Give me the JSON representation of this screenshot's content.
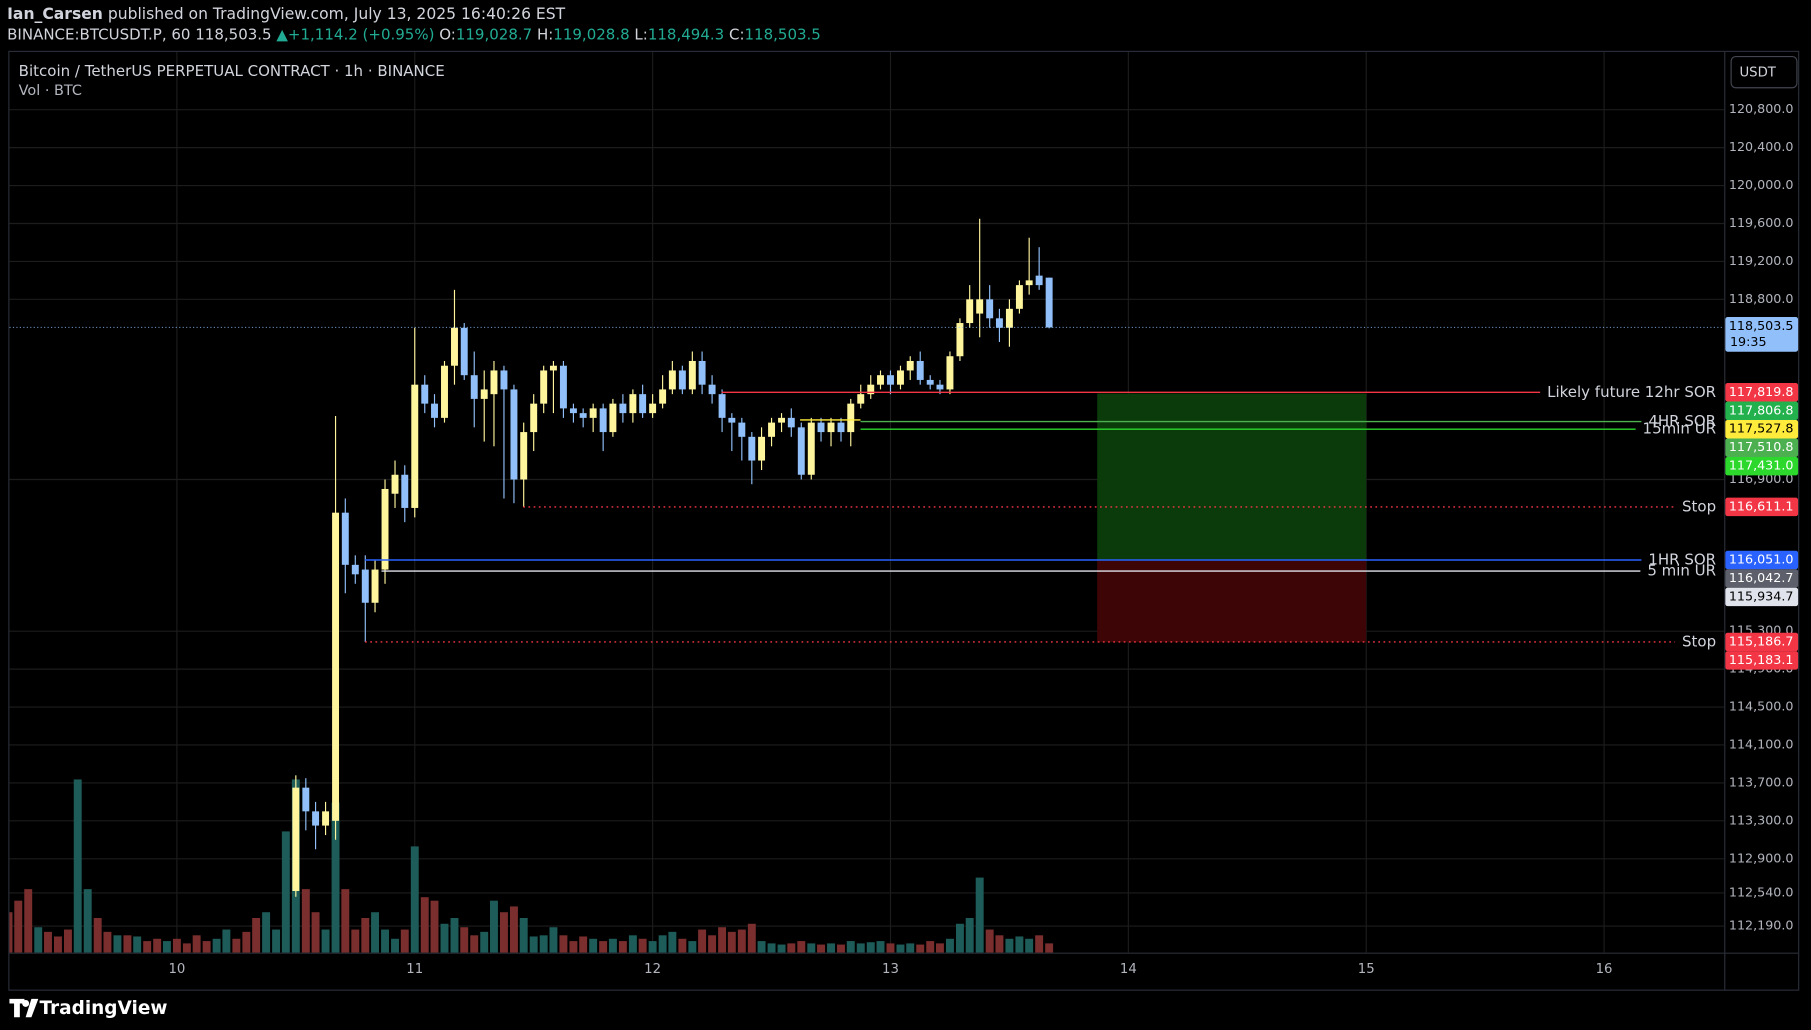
{
  "header": {
    "author": "Ian_Carsen",
    "published": "published on TradingView.com, July 13, 2025 16:40:26 EST",
    "symbol": "BINANCE:BTCUSDT.P, 60",
    "price": "118,503.5",
    "arrow": "▲",
    "change": "+1,114.2 (+0.95%)",
    "o_key": "O:",
    "o": "119,028.7",
    "h_key": "H:",
    "h": "119,028.8",
    "l_key": "L:",
    "l": "118,494.3",
    "c_key": "C:",
    "c": "118,503.5"
  },
  "footer": {
    "logo": "TradingView"
  },
  "chart_data": {
    "type": "candlestick",
    "title": "Bitcoin / TetherUS PERPETUAL CONTRACT · 1h · BINANCE",
    "subtitle": "Vol · BTC",
    "currency": "USDT",
    "x": [
      9.292,
      9.333,
      9.375,
      9.417,
      9.458,
      9.5,
      9.542,
      9.583,
      9.625,
      9.667,
      9.708,
      9.75,
      9.792,
      9.833,
      9.875,
      9.917,
      9.958,
      10,
      10.042,
      10.083,
      10.125,
      10.167,
      10.208,
      10.25,
      10.292,
      10.333,
      10.375,
      10.417,
      10.458,
      10.5,
      10.542,
      10.583,
      10.625,
      10.667,
      10.708,
      10.75,
      10.792,
      10.833,
      10.875,
      10.917,
      10.958,
      11,
      11.042,
      11.083,
      11.125,
      11.167,
      11.208,
      11.25,
      11.292,
      11.333,
      11.375,
      11.417,
      11.458,
      11.5,
      11.542,
      11.583,
      11.625,
      11.667,
      11.708,
      11.75,
      11.792,
      11.833,
      11.875,
      11.917,
      11.958,
      12,
      12.042,
      12.083,
      12.125,
      12.167,
      12.208,
      12.25,
      12.292,
      12.333,
      12.375,
      12.417,
      12.458,
      12.5,
      12.542,
      12.583,
      12.625,
      12.667,
      12.708,
      12.75,
      12.792,
      12.833,
      12.875,
      12.917,
      12.958,
      13,
      13.042,
      13.083,
      13.125,
      13.167,
      13.208,
      13.25,
      13.292,
      13.333,
      13.375,
      13.417,
      13.458,
      13.5,
      13.542,
      13.583,
      13.625,
      13.667
    ],
    "open": [
      null,
      null,
      null,
      null,
      null,
      null,
      null,
      null,
      null,
      null,
      null,
      null,
      null,
      null,
      null,
      null,
      null,
      null,
      null,
      null,
      null,
      null,
      null,
      null,
      null,
      null,
      null,
      null,
      null,
      112560,
      113650,
      113400,
      113250,
      113300,
      116550,
      116000,
      115950,
      115600,
      115950,
      116750,
      116950,
      116600,
      117900,
      117700,
      117550,
      118100,
      118500,
      118000,
      117750,
      117800,
      118050,
      117850,
      116900,
      117400,
      117700,
      118050,
      118100,
      117650,
      117600,
      117550,
      117650,
      117400,
      117700,
      117600,
      117800,
      117600,
      117700,
      117850,
      118050,
      117850,
      118150,
      117900,
      117800,
      117550,
      117500,
      117350,
      117100,
      117350,
      117500,
      117550,
      117450,
      116950,
      117500,
      117400,
      117500,
      117400,
      117700,
      117800,
      117900,
      118000,
      117900,
      118050,
      118150,
      117950,
      117900,
      117850,
      118200,
      118550,
      118650,
      118800,
      118600,
      118500,
      118700,
      118950,
      119050,
      119028.7
    ],
    "high": [
      null,
      null,
      null,
      null,
      null,
      null,
      null,
      null,
      null,
      null,
      null,
      null,
      null,
      null,
      null,
      null,
      null,
      null,
      null,
      null,
      null,
      null,
      null,
      null,
      null,
      null,
      null,
      null,
      null,
      113780,
      113750,
      113500,
      113500,
      117570,
      116700,
      116100,
      116100,
      116050,
      116900,
      117100,
      117050,
      118500,
      118000,
      117800,
      118150,
      118900,
      118550,
      118250,
      118050,
      118150,
      118100,
      117900,
      117500,
      117800,
      118100,
      118150,
      118150,
      117700,
      117650,
      117700,
      117700,
      117750,
      117800,
      117850,
      117900,
      117800,
      118000,
      118150,
      118100,
      118250,
      118250,
      118000,
      117850,
      117600,
      117550,
      117400,
      117450,
      117550,
      117600,
      117650,
      117500,
      117550,
      117550,
      117550,
      117550,
      117750,
      117900,
      118000,
      118050,
      118050,
      118100,
      118200,
      118250,
      118000,
      117950,
      118250,
      118600,
      118950,
      119650,
      118950,
      118700,
      118800,
      119000,
      119450,
      119350,
      119028.8
    ],
    "low": [
      null,
      null,
      null,
      null,
      null,
      null,
      null,
      null,
      null,
      null,
      null,
      null,
      null,
      null,
      null,
      null,
      null,
      null,
      null,
      null,
      null,
      null,
      null,
      null,
      null,
      null,
      null,
      null,
      null,
      112500,
      113200,
      113000,
      113150,
      113100,
      115700,
      115800,
      115186,
      115500,
      115800,
      116600,
      116450,
      116500,
      117600,
      117450,
      117500,
      117900,
      117950,
      117450,
      117300,
      117250,
      116700,
      116650,
      116611,
      117200,
      117600,
      117600,
      117550,
      117500,
      117450,
      117400,
      117200,
      117350,
      117500,
      117500,
      117550,
      117550,
      117650,
      117800,
      117800,
      117800,
      117800,
      117700,
      117400,
      117200,
      117100,
      116850,
      117000,
      117250,
      117400,
      117350,
      116900,
      116900,
      117300,
      117250,
      117300,
      117250,
      117650,
      117750,
      117850,
      117800,
      117850,
      117950,
      117900,
      117850,
      117800,
      117800,
      118150,
      118500,
      118400,
      118500,
      118350,
      118300,
      118650,
      118850,
      118900,
      118494.3
    ],
    "close": [
      null,
      null,
      null,
      null,
      null,
      null,
      null,
      null,
      null,
      null,
      null,
      null,
      null,
      null,
      null,
      null,
      null,
      null,
      null,
      null,
      null,
      null,
      null,
      null,
      null,
      null,
      null,
      null,
      null,
      113650,
      113400,
      113250,
      113400,
      116550,
      116000,
      115900,
      115600,
      115950,
      116800,
      116950,
      116600,
      117900,
      117700,
      117550,
      118100,
      118500,
      118000,
      117750,
      117850,
      118050,
      117850,
      116900,
      117400,
      117700,
      118050,
      118100,
      117650,
      117600,
      117550,
      117650,
      117400,
      117700,
      117600,
      117800,
      117600,
      117700,
      117850,
      118050,
      117850,
      118150,
      117900,
      117800,
      117550,
      117500,
      117350,
      117100,
      117350,
      117500,
      117550,
      117450,
      116950,
      117500,
      117400,
      117500,
      117400,
      117700,
      117800,
      117900,
      118000,
      117900,
      118050,
      118150,
      117950,
      117900,
      117850,
      118200,
      118550,
      118800,
      118800,
      118600,
      118500,
      118700,
      118950,
      119000,
      118950,
      118503.5
    ],
    "volume": {
      "values": [
        35,
        45,
        55,
        22,
        18,
        14,
        20,
        150,
        55,
        30,
        18,
        15,
        15,
        14,
        10,
        12,
        10,
        12,
        8,
        15,
        10,
        12,
        20,
        12,
        18,
        30,
        35,
        20,
        105,
        150,
        55,
        35,
        20,
        130,
        55,
        20,
        30,
        35,
        20,
        12,
        20,
        92,
        48,
        45,
        25,
        30,
        22,
        15,
        18,
        45,
        35,
        40,
        30,
        14,
        15,
        22,
        15,
        10,
        14,
        12,
        10,
        12,
        10,
        15,
        12,
        10,
        15,
        18,
        12,
        10,
        20,
        15,
        22,
        18,
        20,
        25,
        10,
        8,
        7,
        8,
        10,
        8,
        7,
        8,
        7,
        10,
        8,
        9,
        10,
        8,
        7,
        8,
        7,
        10,
        8,
        12,
        25,
        30,
        65,
        20,
        15,
        12,
        14,
        12,
        15,
        8
      ],
      "rising": [
        false,
        false,
        false,
        true,
        false,
        false,
        false,
        true,
        true,
        false,
        false,
        true,
        false,
        true,
        false,
        false,
        true,
        false,
        false,
        false,
        false,
        true,
        true,
        false,
        false,
        false,
        true,
        true,
        true,
        true,
        false,
        false,
        true,
        true,
        false,
        false,
        false,
        true,
        true,
        true,
        false,
        true,
        false,
        false,
        true,
        true,
        false,
        false,
        true,
        true,
        false,
        false,
        true,
        true,
        true,
        true,
        false,
        false,
        false,
        true,
        false,
        true,
        false,
        true,
        false,
        true,
        true,
        true,
        false,
        true,
        false,
        false,
        false,
        false,
        false,
        false,
        true,
        true,
        true,
        false,
        false,
        true,
        false,
        true,
        false,
        true,
        true,
        true,
        true,
        false,
        true,
        true,
        false,
        false,
        false,
        true,
        true,
        true,
        true,
        false,
        false,
        true,
        true,
        true,
        false,
        false
      ]
    },
    "colors": {
      "up": "#fff59d",
      "down": "#90bff9",
      "volume_up": "#1e5c59",
      "volume_down": "#7a2e2e"
    },
    "xlim": [
      9.296,
      16.505
    ],
    "xticks": [
      10,
      11,
      12,
      13,
      14,
      15,
      16
    ],
    "ylim": [
      111910,
      121409
    ],
    "yticks": [
      {
        "value": 120800,
        "label": "120,800.0"
      },
      {
        "value": 120400,
        "label": "120,400.0"
      },
      {
        "value": 120000,
        "label": "120,000.0"
      },
      {
        "value": 119600,
        "label": "119,600.0"
      },
      {
        "value": 119200,
        "label": "119,200.0"
      },
      {
        "value": 118800,
        "label": "118,800.0"
      },
      {
        "value": 116900,
        "label": "116,900.0"
      },
      {
        "value": 115300,
        "label": "115,300.0"
      },
      {
        "value": 114900,
        "label": "114,900.0"
      },
      {
        "value": 114500,
        "label": "114,500.0"
      },
      {
        "value": 114100,
        "label": "114,100.0"
      },
      {
        "value": 113700,
        "label": "113,700.0"
      },
      {
        "value": 113300,
        "label": "113,300.0"
      },
      {
        "value": 112900,
        "label": "112,900.0"
      },
      {
        "value": 112540,
        "label": "112,540.0"
      },
      {
        "value": 112190,
        "label": "112,190.0"
      }
    ],
    "grid": true,
    "last": {
      "value": 118503.5,
      "label": "118,503.5",
      "countdown": "19:35",
      "color": "#90bff9"
    },
    "levels": [
      {
        "label": "Likely future 12hr SOR",
        "value": 117819.8,
        "value_label": "117,819.8",
        "color": "#f23645",
        "style": "solid",
        "from": 12.29
      },
      {
        "label": "4HR SOR",
        "value": 117510.8,
        "value_label": "117,510.8",
        "color": "#4caf50",
        "style": "solid",
        "from": 12.874
      },
      {
        "label": "15min UR",
        "value": 117431.0,
        "value_label": "117,431.0",
        "color": "#2bd82b",
        "style": "solid",
        "from": 12.874
      },
      {
        "value": 117527.8,
        "value_label": "117,527.8",
        "color": "#ffeb3b",
        "style": "solid",
        "from": 12.62,
        "to": 12.874
      },
      {
        "label": "Stop",
        "value": 116611.1,
        "value_label": "116,611.1",
        "color": "#f23645",
        "style": "dotted",
        "from": 11.456
      },
      {
        "label": "1HR SOR",
        "value": 116051.0,
        "value_label": "116,051.0",
        "color": "#2962ff",
        "style": "solid",
        "from": 10.791
      },
      {
        "label": "5 min UR",
        "value": 115934.7,
        "value_label": "115,934.7",
        "color": "#e0e3eb",
        "style": "solid",
        "from": 10.86
      },
      {
        "label": "Stop",
        "value": 115186.7,
        "value_label": "115,186.7",
        "color": "#f23645",
        "style": "dotted",
        "from": 10.791
      }
    ],
    "position": {
      "target": 117806.8,
      "target_label": "117,806.8",
      "entry": 116042.7,
      "entry_label": "116,042.7",
      "stop": 115183.1,
      "stop_label": "115,183.1",
      "from": 13.869,
      "to": 15.0,
      "colors": {
        "target": "#22b14c",
        "entry": "#5d606b",
        "stop": "#f23645",
        "profit_zone": "#0b3b0b",
        "loss_zone": "#3d0505"
      }
    }
  }
}
